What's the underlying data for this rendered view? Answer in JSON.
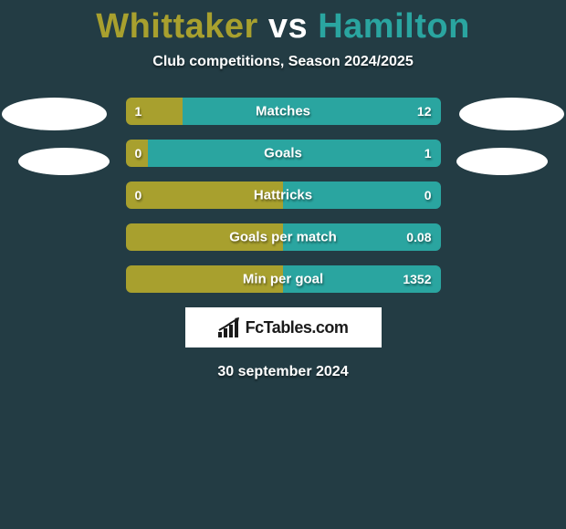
{
  "header": {
    "title_player1": "Whittaker",
    "title_vs": " vs ",
    "title_player2": "Hamilton",
    "player1_color": "#a8a02e",
    "player2_color": "#2aa5a0",
    "subtitle": "Club competitions, Season 2024/2025"
  },
  "background_color": "#233c44",
  "chart": {
    "bar_colors": {
      "left": "#a8a02e",
      "right": "#2aa5a0"
    },
    "rows": [
      {
        "label": "Matches",
        "left_value": "1",
        "right_value": "12",
        "left_pct": 18
      },
      {
        "label": "Goals",
        "left_value": "0",
        "right_value": "1",
        "left_pct": 7
      },
      {
        "label": "Hattricks",
        "left_value": "0",
        "right_value": "0",
        "left_pct": 50
      },
      {
        "label": "Goals per match",
        "left_value": "",
        "right_value": "0.08",
        "left_pct": 50
      },
      {
        "label": "Min per goal",
        "left_value": "",
        "right_value": "1352",
        "left_pct": 50
      }
    ]
  },
  "brand": {
    "text": "FcTables.com"
  },
  "footer": {
    "date": "30 september 2024"
  }
}
